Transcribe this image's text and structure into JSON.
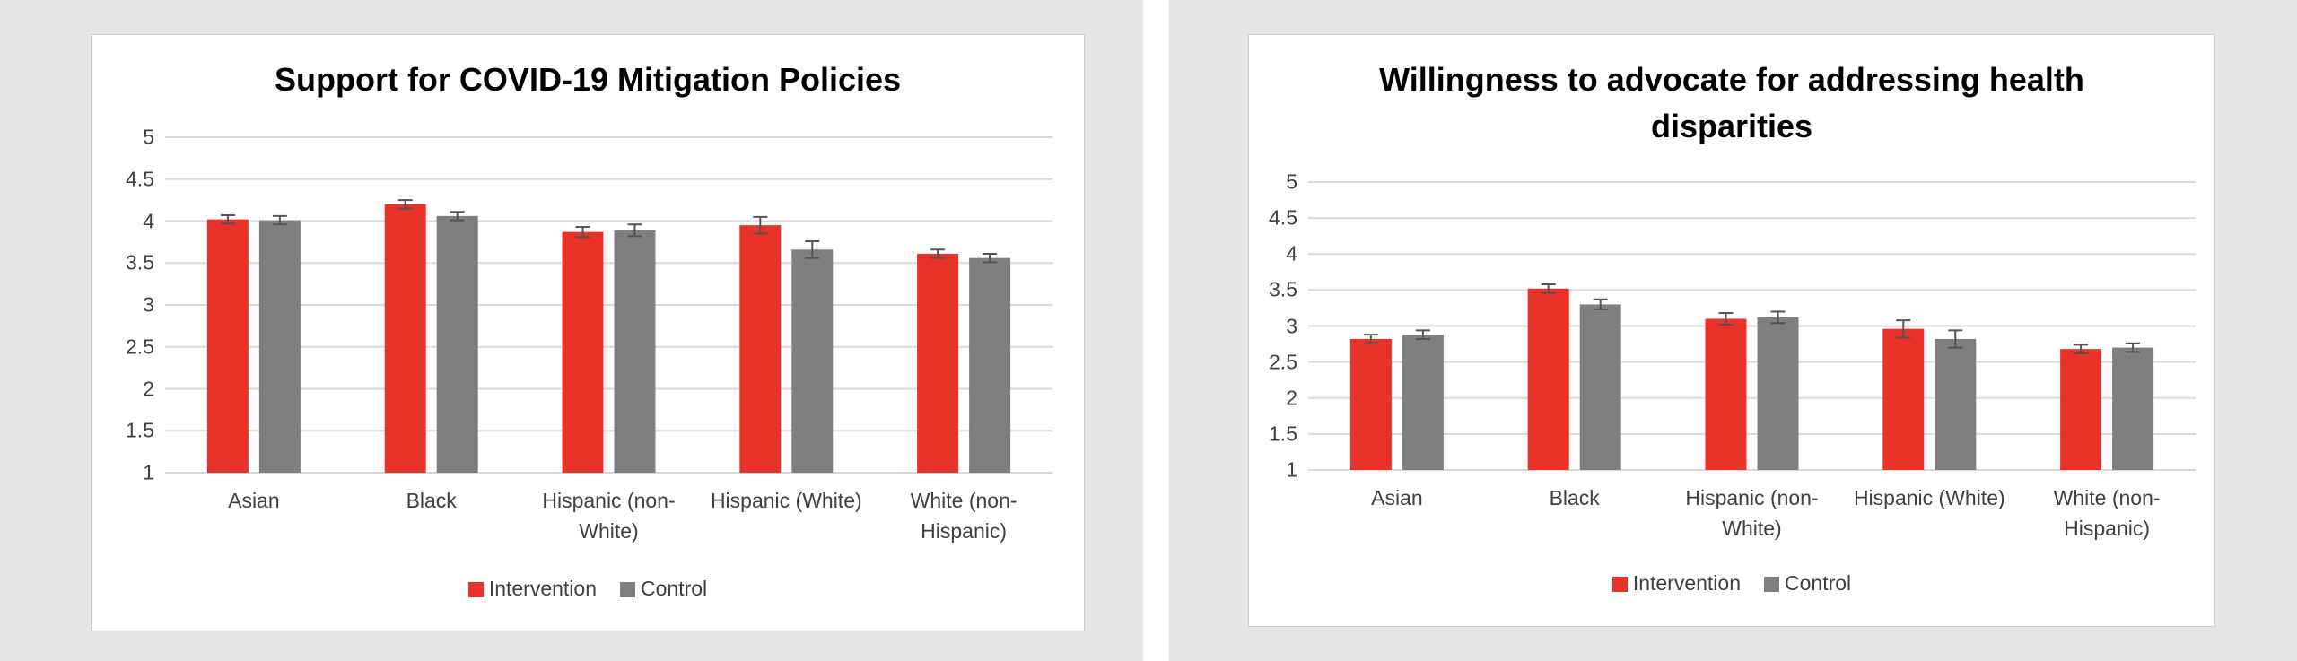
{
  "chart_data": [
    {
      "type": "bar",
      "title": "Support for COVID-19 Mitigation Policies",
      "categories": [
        "Asian",
        "Black",
        "Hispanic (non-White)",
        "Hispanic (White)",
        "White (non-Hispanic)"
      ],
      "series": [
        {
          "name": "Intervention",
          "color": "#e8322a",
          "values": [
            4.02,
            4.2,
            3.87,
            3.95,
            3.61
          ],
          "errors": [
            0.05,
            0.05,
            0.06,
            0.1,
            0.05
          ]
        },
        {
          "name": "Control",
          "color": "#7f7f7f",
          "values": [
            4.01,
            4.06,
            3.89,
            3.66,
            3.56
          ],
          "errors": [
            0.05,
            0.05,
            0.07,
            0.1,
            0.05
          ]
        }
      ],
      "ylim": [
        1,
        5
      ],
      "yticks": [
        1,
        1.5,
        2,
        2.5,
        3,
        3.5,
        4,
        4.5,
        5
      ],
      "grid": true,
      "legend": "bottom"
    },
    {
      "type": "bar",
      "title": "Willingness to advocate for addressing health disparities",
      "categories": [
        "Asian",
        "Black",
        "Hispanic (non-White)",
        "Hispanic (White)",
        "White (non-Hispanic)"
      ],
      "series": [
        {
          "name": "Intervention",
          "color": "#e8322a",
          "values": [
            2.82,
            3.52,
            3.1,
            2.96,
            2.68
          ],
          "errors": [
            0.06,
            0.06,
            0.08,
            0.12,
            0.06
          ]
        },
        {
          "name": "Control",
          "color": "#7f7f7f",
          "values": [
            2.88,
            3.3,
            3.12,
            2.82,
            2.7
          ],
          "errors": [
            0.06,
            0.07,
            0.08,
            0.12,
            0.06
          ]
        }
      ],
      "ylim": [
        1,
        5
      ],
      "yticks": [
        1,
        1.5,
        2,
        2.5,
        3,
        3.5,
        4,
        4.5,
        5
      ],
      "grid": true,
      "legend": "bottom"
    }
  ]
}
